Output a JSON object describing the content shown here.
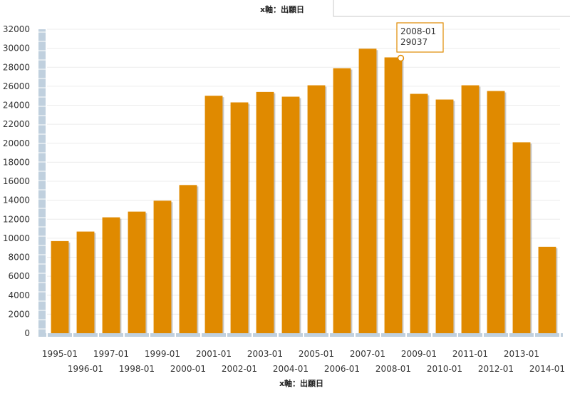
{
  "chart_data": {
    "type": "bar",
    "title": "x軸：出願日",
    "xlabel": "x軸：出願日",
    "ylabel": "",
    "ylim": [
      0,
      32000
    ],
    "y_ticks": [
      0,
      2000,
      4000,
      6000,
      8000,
      10000,
      12000,
      14000,
      16000,
      18000,
      20000,
      22000,
      24000,
      26000,
      28000,
      30000,
      32000
    ],
    "categories": [
      "1995-01",
      "1996-01",
      "1997-01",
      "1998-01",
      "1999-01",
      "2000-01",
      "2001-01",
      "2002-01",
      "2003-01",
      "2004-01",
      "2005-01",
      "2006-01",
      "2007-01",
      "2008-01",
      "2009-01",
      "2010-01",
      "2011-01",
      "2012-01",
      "2013-01",
      "2014-01"
    ],
    "values": [
      9700,
      10700,
      12200,
      12800,
      13950,
      15600,
      25000,
      24300,
      25400,
      24900,
      26100,
      27900,
      29950,
      29037,
      25200,
      24600,
      26100,
      25500,
      20100,
      9100
    ],
    "bar_color": "#e08a00",
    "grid": true,
    "tooltip": {
      "category": "2008-01",
      "value": "29037"
    }
  }
}
